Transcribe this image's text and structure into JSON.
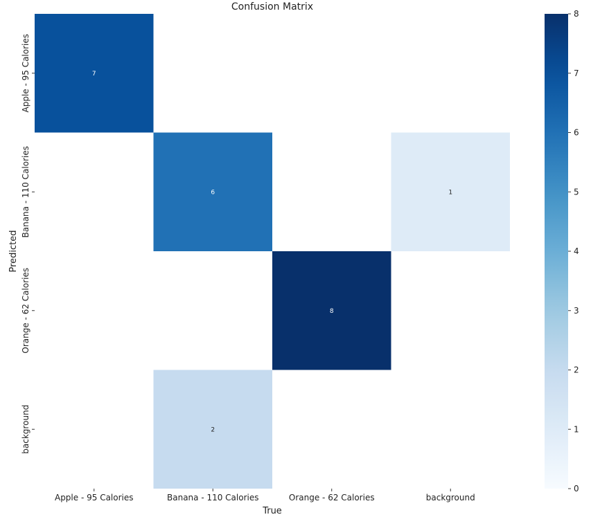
{
  "chart_data": {
    "type": "heatmap",
    "title": "Confusion Matrix",
    "xlabel": "True",
    "ylabel": "Predicted",
    "x_categories": [
      "Apple - 95 Calories",
      "Banana - 110 Calories",
      "Orange - 62 Calories",
      "background"
    ],
    "y_categories": [
      "Apple - 95 Calories",
      "Banana - 110 Calories",
      "Orange - 62 Calories",
      "background"
    ],
    "values": [
      [
        7,
        0,
        0,
        0
      ],
      [
        0,
        6,
        0,
        1
      ],
      [
        0,
        0,
        8,
        0
      ],
      [
        0,
        2,
        0,
        0
      ]
    ],
    "annotate_zero": false,
    "colormap": "Blues",
    "colorbar": {
      "min": 0,
      "max": 8,
      "ticks": [
        0,
        1,
        2,
        3,
        4,
        5,
        6,
        7,
        8
      ]
    },
    "grid": false,
    "legend": "colorbar-right"
  }
}
